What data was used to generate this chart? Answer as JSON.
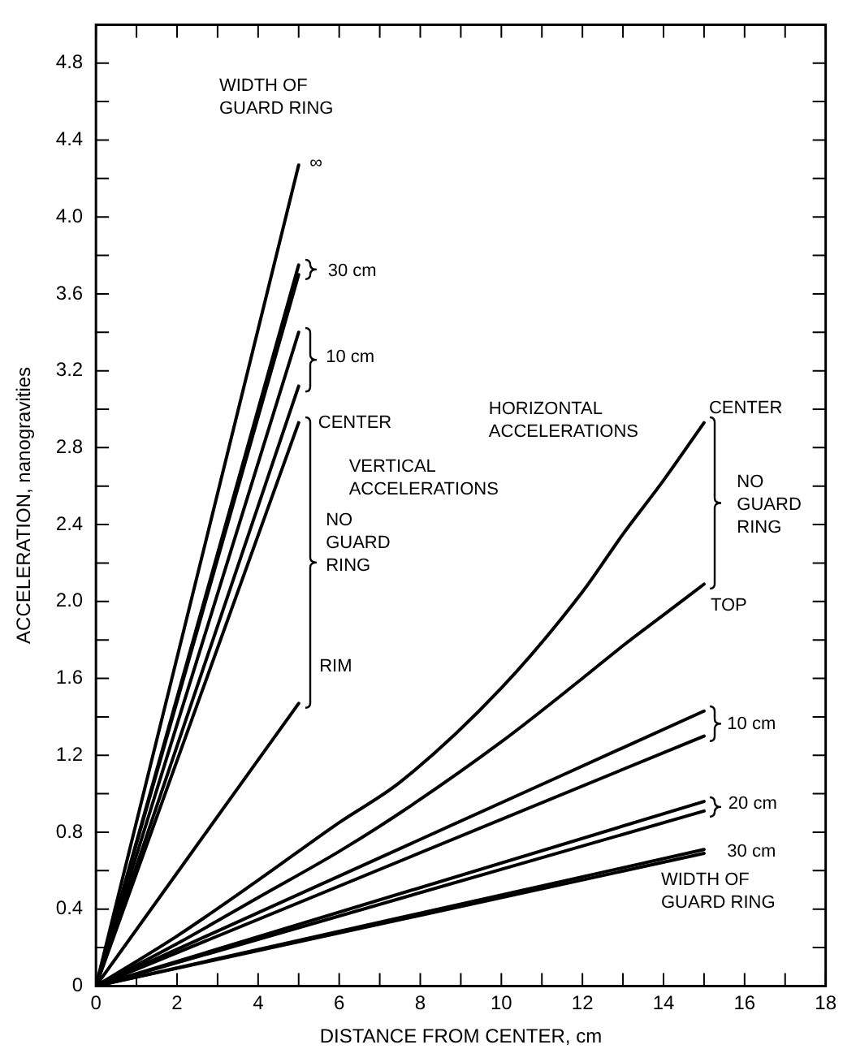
{
  "chart_data": {
    "type": "line",
    "xlabel": "DISTANCE FROM CENTER, cm",
    "ylabel": "ACCELERATION, nanogravities",
    "xlim": [
      0,
      18
    ],
    "ylim": [
      0,
      5
    ],
    "xticks": [
      0,
      {
        "value": 1,
        "label": null
      },
      2,
      {
        "value": 3,
        "label": null
      },
      4,
      {
        "value": 5,
        "label": null
      },
      6,
      {
        "value": 7,
        "label": null
      },
      8,
      {
        "value": 9,
        "label": null
      },
      10,
      {
        "value": 11,
        "label": null
      },
      12,
      {
        "value": 13,
        "label": null
      },
      14,
      {
        "value": 15,
        "label": null
      },
      16,
      {
        "value": 17,
        "label": null
      },
      18
    ],
    "yticks": [
      0,
      {
        "value": 0.2,
        "label": null
      },
      0.4,
      {
        "value": 0.6,
        "label": null
      },
      0.8,
      {
        "value": 1.0,
        "label": null
      },
      1.2,
      {
        "value": 1.4,
        "label": null
      },
      1.6,
      {
        "value": 1.8,
        "label": null
      },
      {
        "value": 2,
        "label": "2.0"
      },
      {
        "value": 2.2,
        "label": null
      },
      2.4,
      {
        "value": 2.6,
        "label": null
      },
      2.8,
      {
        "value": 3.0,
        "label": null
      },
      3.2,
      {
        "value": 3.4,
        "label": null
      },
      3.6,
      {
        "value": 3.8,
        "label": null
      },
      {
        "value": 4,
        "label": "4.0"
      },
      {
        "value": 4.2,
        "label": null
      },
      4.4,
      {
        "value": 4.6,
        "label": null
      },
      4.8
    ],
    "grid": false,
    "legend": false,
    "line_style": "solid",
    "series": [
      {
        "color": "#000000",
        "x": [
          0,
          5
        ],
        "values": [
          0,
          4.27
        ]
      },
      {
        "color": "#000000",
        "x": [
          0,
          5
        ],
        "values": [
          0,
          3.75
        ]
      },
      {
        "color": "#000000",
        "x": [
          0,
          5
        ],
        "values": [
          0,
          3.7
        ]
      },
      {
        "color": "#000000",
        "x": [
          0,
          5
        ],
        "values": [
          0,
          3.4
        ]
      },
      {
        "color": "#000000",
        "x": [
          0,
          5
        ],
        "values": [
          0,
          3.12
        ]
      },
      {
        "color": "#000000",
        "x": [
          0,
          5
        ],
        "values": [
          0,
          2.93
        ]
      },
      {
        "color": "#000000",
        "x": [
          0,
          5
        ],
        "values": [
          0,
          1.47
        ]
      },
      {
        "color": "#000000",
        "x": [
          0,
          2,
          4,
          6,
          7.5,
          10,
          12,
          13,
          14,
          15
        ],
        "values": [
          0,
          0.26,
          0.55,
          0.85,
          1.06,
          1.55,
          2.05,
          2.35,
          2.63,
          2.93
        ]
      },
      {
        "color": "#000000",
        "x": [
          0,
          2,
          4,
          6,
          7.5,
          10,
          12,
          13,
          14,
          15
        ],
        "values": [
          0,
          0.22,
          0.46,
          0.7,
          0.9,
          1.27,
          1.6,
          1.77,
          1.93,
          2.09
        ]
      },
      {
        "color": "#000000",
        "x": [
          0,
          15
        ],
        "values": [
          0,
          1.43
        ]
      },
      {
        "color": "#000000",
        "x": [
          0,
          15
        ],
        "values": [
          0,
          1.3
        ]
      },
      {
        "color": "#000000",
        "x": [
          0,
          15
        ],
        "values": [
          0,
          0.96
        ]
      },
      {
        "color": "#000000",
        "x": [
          0,
          15
        ],
        "values": [
          0,
          0.91
        ]
      },
      {
        "color": "#000000",
        "x": [
          0,
          15
        ],
        "values": [
          0,
          0.71
        ]
      },
      {
        "color": "#000000",
        "x": [
          0,
          15
        ],
        "values": [
          0,
          0.69
        ]
      }
    ],
    "annotations": [
      "WIDTH OF\nGUARD RING",
      "∞",
      "30 cm",
      "10 cm",
      {
        "text": "CENTER",
        "x": 5,
        "y": 2.93
      },
      "VERTICAL\nACCELERATIONS",
      "NO\nGUARD\nRING",
      "RIM",
      "HORIZONTAL\nACCELERATIONS",
      {
        "text": "CENTER",
        "x": 15,
        "y": 2.93
      },
      "NO\nGUARD\nRING",
      "TOP",
      "10 cm",
      "20 cm",
      "30 cm",
      "WIDTH OF\nGUARD RING"
    ]
  }
}
